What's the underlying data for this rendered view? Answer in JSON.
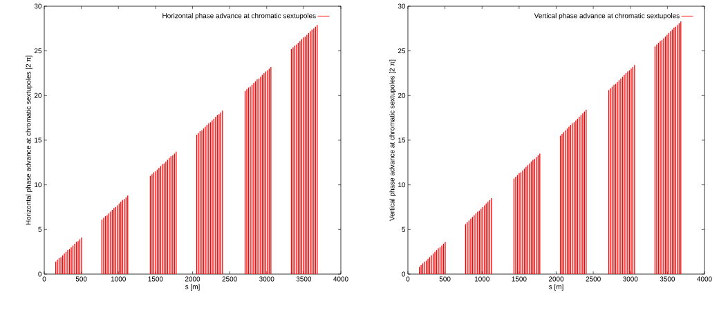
{
  "chart_data": [
    {
      "type": "bar",
      "xlabel": "s [m]",
      "ylabel": "Horizontal phase advance at chromatic sextupoles [2 π]",
      "xlim": [
        0,
        4000
      ],
      "xticks": [
        0,
        500,
        1000,
        1500,
        2000,
        2500,
        3000,
        3500,
        4000
      ],
      "ylim": [
        0,
        30
      ],
      "yticks": [
        0,
        5,
        10,
        15,
        20,
        25,
        30
      ],
      "legend": "top right",
      "series": [
        {
          "name": "Horizontal phase advance at chromatic sextupoles",
          "color": "#ff0000",
          "x": [
            155,
            178,
            201,
            225,
            248,
            271,
            294,
            317,
            341,
            364,
            387,
            410,
            433,
            457,
            480,
            503,
            778,
            801,
            824,
            848,
            871,
            894,
            917,
            940,
            964,
            987,
            1010,
            1033,
            1056,
            1080,
            1103,
            1126,
            1431,
            1454,
            1477,
            1501,
            1524,
            1547,
            1570,
            1593,
            1617,
            1640,
            1663,
            1686,
            1709,
            1733,
            1756,
            1779,
            2056,
            2079,
            2102,
            2126,
            2149,
            2172,
            2195,
            2218,
            2242,
            2265,
            2288,
            2311,
            2334,
            2358,
            2381,
            2404,
            2709,
            2732,
            2755,
            2779,
            2802,
            2825,
            2848,
            2871,
            2895,
            2918,
            2941,
            2964,
            2987,
            3011,
            3034,
            3057,
            3333,
            3356,
            3379,
            3403,
            3426,
            3449,
            3472,
            3495,
            3519,
            3542,
            3565,
            3588,
            3611,
            3635,
            3658,
            3681
          ],
          "values": [
            1.4,
            1.6,
            1.8,
            1.9,
            2.1,
            2.3,
            2.5,
            2.7,
            2.8,
            3.0,
            3.2,
            3.4,
            3.6,
            3.7,
            3.9,
            4.1,
            6.1,
            6.3,
            6.5,
            6.6,
            6.8,
            7.0,
            7.2,
            7.4,
            7.5,
            7.7,
            7.9,
            8.1,
            8.3,
            8.4,
            8.6,
            8.8,
            11.0,
            11.2,
            11.4,
            11.5,
            11.7,
            11.9,
            12.1,
            12.3,
            12.4,
            12.6,
            12.8,
            13.0,
            13.2,
            13.3,
            13.5,
            13.7,
            15.6,
            15.8,
            16.0,
            16.1,
            16.3,
            16.5,
            16.7,
            16.9,
            17.0,
            17.2,
            17.4,
            17.6,
            17.8,
            17.9,
            18.1,
            18.3,
            20.5,
            20.7,
            20.9,
            21.0,
            21.2,
            21.4,
            21.6,
            21.8,
            21.9,
            22.1,
            22.3,
            22.5,
            22.7,
            22.8,
            23.0,
            23.2,
            25.2,
            25.4,
            25.6,
            25.7,
            25.9,
            26.1,
            26.3,
            26.5,
            26.6,
            26.8,
            27.0,
            27.2,
            27.4,
            27.5,
            27.7,
            27.9
          ]
        }
      ]
    },
    {
      "type": "bar",
      "xlabel": "s [m]",
      "ylabel": "Vertical phase advance at chromatic sextupoles [2 π]",
      "xlim": [
        0,
        4000
      ],
      "xticks": [
        0,
        500,
        1000,
        1500,
        2000,
        2500,
        3000,
        3500,
        4000
      ],
      "ylim": [
        0,
        30
      ],
      "yticks": [
        0,
        5,
        10,
        15,
        20,
        25,
        30
      ],
      "legend": "top right",
      "series": [
        {
          "name": "Vertical phase advance at chromatic sextupoles",
          "color": "#ff0000",
          "x": [
            155,
            178,
            201,
            225,
            248,
            271,
            294,
            317,
            341,
            364,
            387,
            410,
            433,
            457,
            480,
            503,
            778,
            801,
            824,
            848,
            871,
            894,
            917,
            940,
            964,
            987,
            1010,
            1033,
            1056,
            1080,
            1103,
            1126,
            1431,
            1454,
            1477,
            1501,
            1524,
            1547,
            1570,
            1593,
            1617,
            1640,
            1663,
            1686,
            1709,
            1733,
            1756,
            1779,
            2056,
            2079,
            2102,
            2126,
            2149,
            2172,
            2195,
            2218,
            2242,
            2265,
            2288,
            2311,
            2334,
            2358,
            2381,
            2404,
            2709,
            2732,
            2755,
            2779,
            2802,
            2825,
            2848,
            2871,
            2895,
            2918,
            2941,
            2964,
            2987,
            3011,
            3034,
            3057,
            3333,
            3356,
            3379,
            3403,
            3426,
            3449,
            3472,
            3495,
            3519,
            3542,
            3565,
            3588,
            3611,
            3635,
            3658,
            3681
          ],
          "values": [
            0.8,
            1.0,
            1.2,
            1.4,
            1.5,
            1.7,
            1.9,
            2.1,
            2.3,
            2.5,
            2.7,
            2.9,
            3.0,
            3.2,
            3.4,
            3.6,
            5.6,
            5.8,
            6.0,
            6.2,
            6.4,
            6.6,
            6.8,
            7.0,
            7.1,
            7.3,
            7.5,
            7.7,
            7.9,
            8.1,
            8.3,
            8.5,
            10.7,
            10.9,
            11.1,
            11.3,
            11.4,
            11.6,
            11.8,
            12.0,
            12.2,
            12.4,
            12.6,
            12.8,
            12.9,
            13.1,
            13.3,
            13.5,
            15.5,
            15.7,
            15.9,
            16.1,
            16.3,
            16.5,
            16.7,
            16.9,
            17.0,
            17.2,
            17.4,
            17.6,
            17.8,
            18.0,
            18.2,
            18.4,
            20.6,
            20.8,
            21.0,
            21.2,
            21.3,
            21.5,
            21.7,
            21.9,
            22.1,
            22.3,
            22.5,
            22.7,
            22.8,
            23.0,
            23.2,
            23.4,
            25.5,
            25.7,
            25.9,
            26.1,
            26.2,
            26.4,
            26.6,
            26.8,
            27.0,
            27.2,
            27.4,
            27.6,
            27.7,
            27.9,
            28.1,
            28.3
          ]
        }
      ]
    }
  ]
}
